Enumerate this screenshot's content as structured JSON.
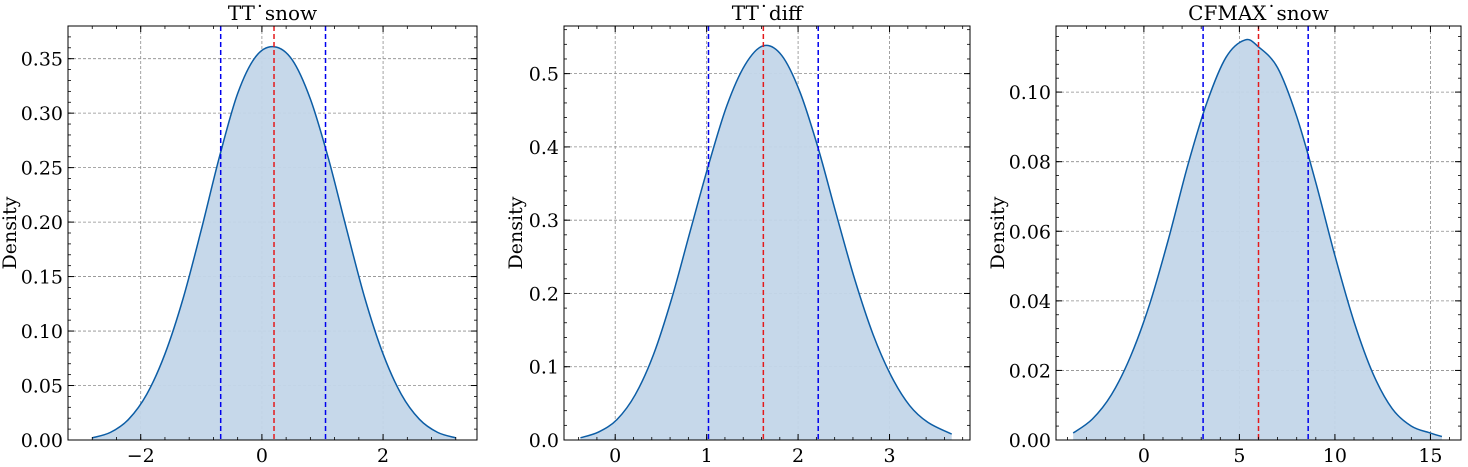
{
  "colors": {
    "curve": "#0c5da5",
    "fill": "#c3d6e9",
    "median_line": "#e41a1c",
    "ci_line": "#0000ee",
    "grid": "#8c8c8c",
    "axis": "#000000"
  },
  "chart_data": [
    {
      "type": "area",
      "title": "TT˙snow",
      "xlabel": "",
      "ylabel": "Density",
      "xlim": [
        -3.2,
        3.55
      ],
      "ylim": [
        0,
        0.38
      ],
      "xticks": [
        -2,
        0,
        2
      ],
      "xtick_labels": [
        "−2",
        "0",
        "2"
      ],
      "yticks": [
        0,
        0.05,
        0.1,
        0.15,
        0.2,
        0.25,
        0.3,
        0.35
      ],
      "ytick_labels": [
        "0.00",
        "0.05",
        "0.10",
        "0.15",
        "0.20",
        "0.25",
        "0.30",
        "0.35"
      ],
      "grid": true,
      "x": [
        -2.8,
        -2.5,
        -2.2,
        -1.9,
        -1.6,
        -1.3,
        -1.0,
        -0.7,
        -0.4,
        -0.1,
        0.2,
        0.5,
        0.8,
        1.1,
        1.4,
        1.7,
        2.0,
        2.3,
        2.6,
        2.9,
        3.2
      ],
      "y": [
        0.002,
        0.007,
        0.019,
        0.042,
        0.079,
        0.13,
        0.193,
        0.26,
        0.318,
        0.352,
        0.361,
        0.349,
        0.313,
        0.258,
        0.193,
        0.13,
        0.079,
        0.042,
        0.019,
        0.007,
        0.002
      ],
      "vlines": [
        {
          "x": 0.2,
          "kind": "median"
        },
        {
          "x": -0.68,
          "kind": "ci"
        },
        {
          "x": 1.05,
          "kind": "ci"
        }
      ]
    },
    {
      "type": "area",
      "title": "TT˙diff",
      "xlabel": "",
      "ylabel": "Density",
      "xlim": [
        -0.56,
        3.88
      ],
      "ylim": [
        0,
        0.565
      ],
      "xticks": [
        0,
        1,
        2,
        3
      ],
      "xtick_labels": [
        "0",
        "1",
        "2",
        "3"
      ],
      "yticks": [
        0,
        0.1,
        0.2,
        0.3,
        0.4,
        0.5
      ],
      "ytick_labels": [
        "0.0",
        "0.1",
        "0.2",
        "0.3",
        "0.4",
        "0.5"
      ],
      "grid": true,
      "x": [
        -0.38,
        -0.18,
        0.02,
        0.22,
        0.42,
        0.62,
        0.82,
        1.02,
        1.22,
        1.42,
        1.62,
        1.82,
        2.02,
        2.22,
        2.42,
        2.62,
        2.82,
        3.02,
        3.22,
        3.42,
        3.68
      ],
      "y": [
        0.003,
        0.011,
        0.028,
        0.062,
        0.117,
        0.194,
        0.285,
        0.375,
        0.456,
        0.512,
        0.538,
        0.525,
        0.475,
        0.398,
        0.307,
        0.219,
        0.144,
        0.087,
        0.047,
        0.024,
        0.008
      ],
      "vlines": [
        {
          "x": 1.62,
          "kind": "median"
        },
        {
          "x": 1.02,
          "kind": "ci"
        },
        {
          "x": 2.22,
          "kind": "ci"
        }
      ]
    },
    {
      "type": "area",
      "title": "CFMAX˙snow",
      "xlabel": "",
      "ylabel": "Density",
      "xlim": [
        -4.6,
        16.6
      ],
      "ylim": [
        0,
        0.119
      ],
      "xticks": [
        0,
        5,
        10,
        15
      ],
      "xtick_labels": [
        "0",
        "5",
        "10",
        "15"
      ],
      "yticks": [
        0,
        0.02,
        0.04,
        0.06,
        0.08,
        0.1
      ],
      "ytick_labels": [
        "0.00",
        "0.02",
        "0.04",
        "0.06",
        "0.08",
        "0.10"
      ],
      "grid": true,
      "x": [
        -3.7,
        -2.7,
        -1.7,
        -0.7,
        0.3,
        1.3,
        2.3,
        3.3,
        4.3,
        5.3,
        6.0,
        7.0,
        8.0,
        9.0,
        10.0,
        11.0,
        12.0,
        13.0,
        14.0,
        15.0,
        15.6
      ],
      "y": [
        0.002,
        0.006,
        0.013,
        0.024,
        0.039,
        0.058,
        0.079,
        0.097,
        0.11,
        0.115,
        0.113,
        0.107,
        0.093,
        0.074,
        0.053,
        0.034,
        0.019,
        0.009,
        0.004,
        0.002,
        0.001
      ],
      "vlines": [
        {
          "x": 6.0,
          "kind": "median"
        },
        {
          "x": 3.1,
          "kind": "ci"
        },
        {
          "x": 8.6,
          "kind": "ci"
        }
      ]
    }
  ]
}
